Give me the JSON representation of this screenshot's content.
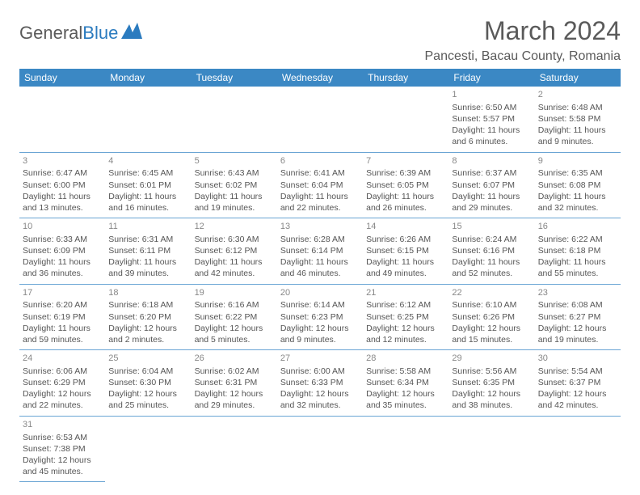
{
  "logo": {
    "text1": "General",
    "text2": "Blue"
  },
  "title": "March 2024",
  "location": "Pancesti, Bacau County, Romania",
  "headers": [
    "Sunday",
    "Monday",
    "Tuesday",
    "Wednesday",
    "Thursday",
    "Friday",
    "Saturday"
  ],
  "colors": {
    "header_bg": "#3b88c4",
    "header_text": "#ffffff",
    "border": "#6aa5d4",
    "text": "#555555",
    "title": "#5a5a5a"
  },
  "weeks": [
    [
      null,
      null,
      null,
      null,
      null,
      {
        "d": "1",
        "sr": "6:50 AM",
        "ss": "5:57 PM",
        "dl": "11 hours and 6 minutes."
      },
      {
        "d": "2",
        "sr": "6:48 AM",
        "ss": "5:58 PM",
        "dl": "11 hours and 9 minutes."
      }
    ],
    [
      {
        "d": "3",
        "sr": "6:47 AM",
        "ss": "6:00 PM",
        "dl": "11 hours and 13 minutes."
      },
      {
        "d": "4",
        "sr": "6:45 AM",
        "ss": "6:01 PM",
        "dl": "11 hours and 16 minutes."
      },
      {
        "d": "5",
        "sr": "6:43 AM",
        "ss": "6:02 PM",
        "dl": "11 hours and 19 minutes."
      },
      {
        "d": "6",
        "sr": "6:41 AM",
        "ss": "6:04 PM",
        "dl": "11 hours and 22 minutes."
      },
      {
        "d": "7",
        "sr": "6:39 AM",
        "ss": "6:05 PM",
        "dl": "11 hours and 26 minutes."
      },
      {
        "d": "8",
        "sr": "6:37 AM",
        "ss": "6:07 PM",
        "dl": "11 hours and 29 minutes."
      },
      {
        "d": "9",
        "sr": "6:35 AM",
        "ss": "6:08 PM",
        "dl": "11 hours and 32 minutes."
      }
    ],
    [
      {
        "d": "10",
        "sr": "6:33 AM",
        "ss": "6:09 PM",
        "dl": "11 hours and 36 minutes."
      },
      {
        "d": "11",
        "sr": "6:31 AM",
        "ss": "6:11 PM",
        "dl": "11 hours and 39 minutes."
      },
      {
        "d": "12",
        "sr": "6:30 AM",
        "ss": "6:12 PM",
        "dl": "11 hours and 42 minutes."
      },
      {
        "d": "13",
        "sr": "6:28 AM",
        "ss": "6:14 PM",
        "dl": "11 hours and 46 minutes."
      },
      {
        "d": "14",
        "sr": "6:26 AM",
        "ss": "6:15 PM",
        "dl": "11 hours and 49 minutes."
      },
      {
        "d": "15",
        "sr": "6:24 AM",
        "ss": "6:16 PM",
        "dl": "11 hours and 52 minutes."
      },
      {
        "d": "16",
        "sr": "6:22 AM",
        "ss": "6:18 PM",
        "dl": "11 hours and 55 minutes."
      }
    ],
    [
      {
        "d": "17",
        "sr": "6:20 AM",
        "ss": "6:19 PM",
        "dl": "11 hours and 59 minutes."
      },
      {
        "d": "18",
        "sr": "6:18 AM",
        "ss": "6:20 PM",
        "dl": "12 hours and 2 minutes."
      },
      {
        "d": "19",
        "sr": "6:16 AM",
        "ss": "6:22 PM",
        "dl": "12 hours and 5 minutes."
      },
      {
        "d": "20",
        "sr": "6:14 AM",
        "ss": "6:23 PM",
        "dl": "12 hours and 9 minutes."
      },
      {
        "d": "21",
        "sr": "6:12 AM",
        "ss": "6:25 PM",
        "dl": "12 hours and 12 minutes."
      },
      {
        "d": "22",
        "sr": "6:10 AM",
        "ss": "6:26 PM",
        "dl": "12 hours and 15 minutes."
      },
      {
        "d": "23",
        "sr": "6:08 AM",
        "ss": "6:27 PM",
        "dl": "12 hours and 19 minutes."
      }
    ],
    [
      {
        "d": "24",
        "sr": "6:06 AM",
        "ss": "6:29 PM",
        "dl": "12 hours and 22 minutes."
      },
      {
        "d": "25",
        "sr": "6:04 AM",
        "ss": "6:30 PM",
        "dl": "12 hours and 25 minutes."
      },
      {
        "d": "26",
        "sr": "6:02 AM",
        "ss": "6:31 PM",
        "dl": "12 hours and 29 minutes."
      },
      {
        "d": "27",
        "sr": "6:00 AM",
        "ss": "6:33 PM",
        "dl": "12 hours and 32 minutes."
      },
      {
        "d": "28",
        "sr": "5:58 AM",
        "ss": "6:34 PM",
        "dl": "12 hours and 35 minutes."
      },
      {
        "d": "29",
        "sr": "5:56 AM",
        "ss": "6:35 PM",
        "dl": "12 hours and 38 minutes."
      },
      {
        "d": "30",
        "sr": "5:54 AM",
        "ss": "6:37 PM",
        "dl": "12 hours and 42 minutes."
      }
    ],
    [
      {
        "d": "31",
        "sr": "6:53 AM",
        "ss": "7:38 PM",
        "dl": "12 hours and 45 minutes."
      },
      null,
      null,
      null,
      null,
      null,
      null
    ]
  ],
  "labels": {
    "sunrise": "Sunrise: ",
    "sunset": "Sunset: ",
    "daylight": "Daylight: "
  }
}
